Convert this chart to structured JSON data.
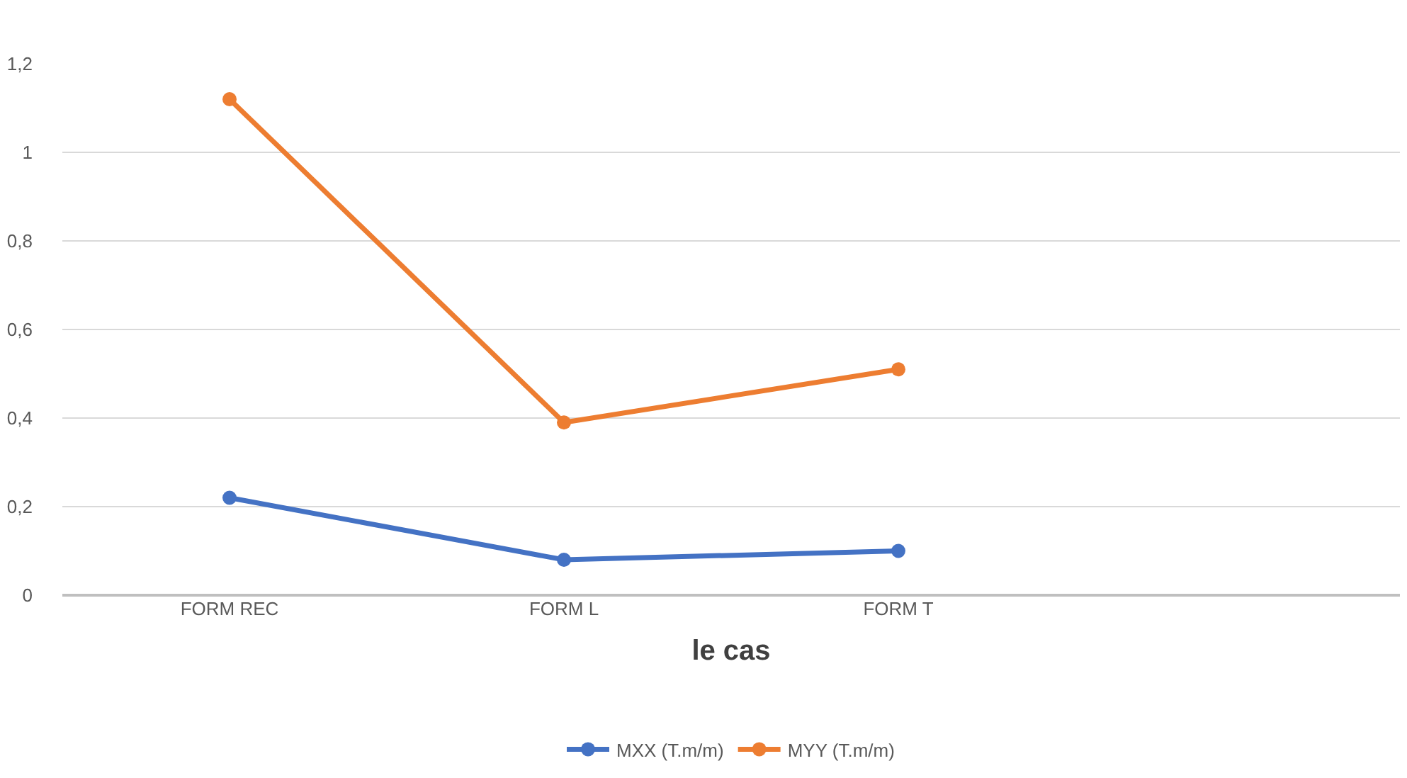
{
  "chart_data": {
    "type": "line",
    "xlabel": "le cas",
    "categories": [
      "FORM REC",
      "FORM L",
      "FORM T",
      null
    ],
    "series": [
      {
        "name": "MXX (T.m/m)",
        "color": "#4472c4",
        "values": [
          0.22,
          0.08,
          0.1,
          null
        ]
      },
      {
        "name": "MYY (T.m/m)",
        "color": "#ed7d31",
        "values": [
          1.12,
          0.39,
          0.51,
          null
        ]
      }
    ],
    "ylim": [
      0,
      1.2
    ],
    "yticks": [
      0,
      {
        "value": 0.2,
        "label": "0,2"
      },
      {
        "value": 0.4,
        "label": "0,4"
      },
      {
        "value": 0.6,
        "label": "0,6"
      },
      {
        "value": 0.8,
        "label": "0,8"
      },
      1,
      {
        "value": 1.2,
        "label": "1,2"
      }
    ],
    "grid": "y",
    "legend": "bottom",
    "marker": "circle",
    "line_style": "solid"
  }
}
